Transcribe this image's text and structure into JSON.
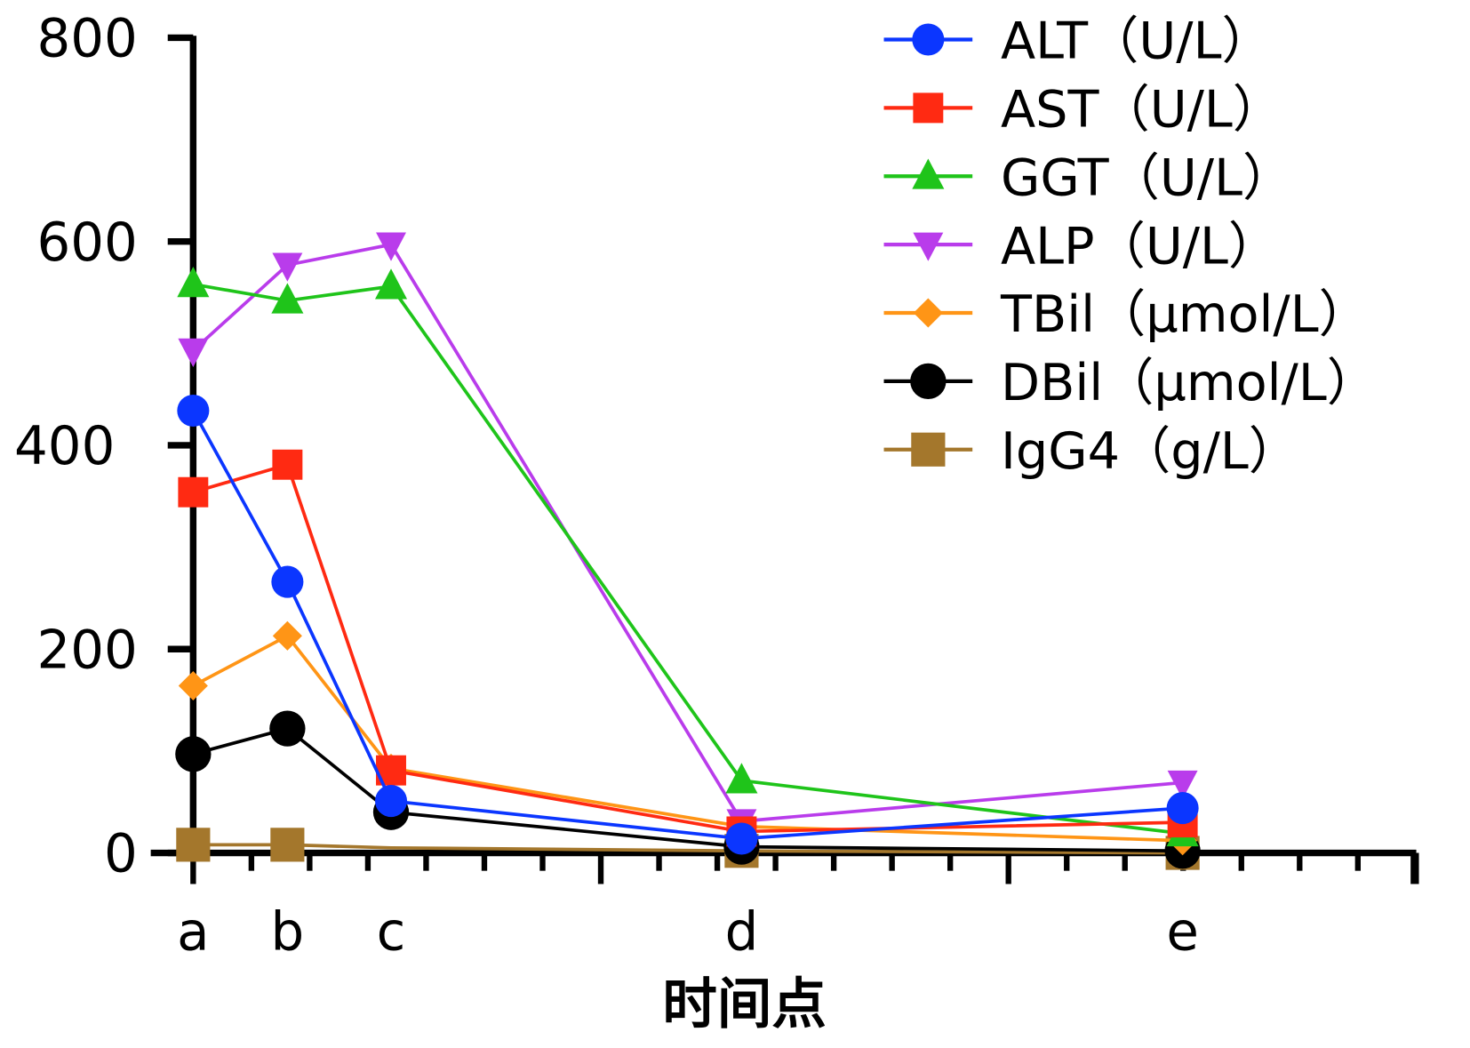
{
  "chart_data": {
    "type": "line",
    "title": "",
    "xlabel": "时间点",
    "ylabel": "",
    "categories": [
      "a",
      "b",
      "c",
      "d",
      "e"
    ],
    "ylim": [
      0,
      800
    ],
    "yticks": [
      "0",
      "200",
      "400",
      "600",
      "800"
    ],
    "grid": false,
    "legend_placement": "top-right",
    "series": [
      {
        "name": "ALT（U/L）",
        "color": "#0b36ff",
        "marker": "circle",
        "values": [
          434,
          266,
          51,
          14,
          44
        ]
      },
      {
        "name": "AST（U/L）",
        "color": "#ff2a12",
        "marker": "square",
        "values": [
          354,
          381,
          81,
          21,
          30
        ]
      },
      {
        "name": "GGT（U/L）",
        "color": "#1fc41a",
        "marker": "triangle-up",
        "values": [
          558,
          542,
          556,
          71,
          19
        ]
      },
      {
        "name": "ALP（U/L）",
        "color": "#b93ceb",
        "marker": "triangle-down",
        "values": [
          493,
          577,
          597,
          31,
          69
        ]
      },
      {
        "name": "TBil（μmol/L）",
        "color": "#ff9516",
        "marker": "diamond",
        "values": [
          164,
          213,
          83,
          26,
          12
        ]
      },
      {
        "name": "DBil（μmol/L）",
        "color": "#000000",
        "marker": "circle",
        "values": [
          97,
          122,
          40,
          6,
          2
        ]
      },
      {
        "name": "IgG4（g/L）",
        "color": "#a4772c",
        "marker": "square",
        "values": [
          8,
          8,
          5,
          2,
          0
        ]
      }
    ]
  }
}
